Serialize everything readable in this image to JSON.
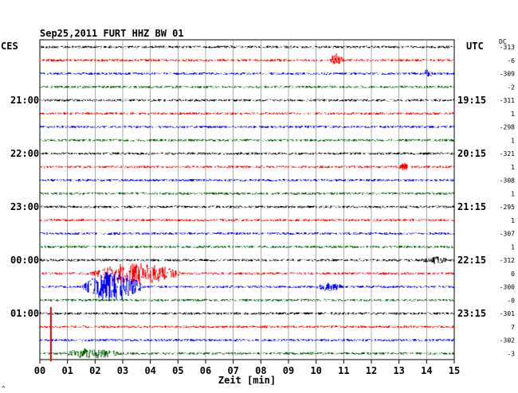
{
  "chart_data": {
    "type": "line",
    "title": "Sep25,2011   FURT HHZ BW 01",
    "left_axis_label": "CES",
    "right_axis_label": "UTC",
    "dc_label": "DC",
    "xlabel": "Zeit [min]",
    "xlim": [
      0,
      15
    ],
    "x_ticks": [
      "00",
      "01",
      "02",
      "03",
      "04",
      "05",
      "06",
      "07",
      "08",
      "09",
      "10",
      "11",
      "12",
      "13",
      "14",
      "15"
    ],
    "left_time_labels": [
      {
        "row": 4,
        "text": "21:00"
      },
      {
        "row": 8,
        "text": "22:00"
      },
      {
        "row": 12,
        "text": "23:00"
      },
      {
        "row": 16,
        "text": "00:00"
      },
      {
        "row": 20,
        "text": "01:00"
      }
    ],
    "right_time_labels": [
      {
        "row": 4,
        "text": "19:15"
      },
      {
        "row": 8,
        "text": "20:15"
      },
      {
        "row": 12,
        "text": "21:15"
      },
      {
        "row": 16,
        "text": "22:15"
      },
      {
        "row": 20,
        "text": "23:15"
      }
    ],
    "trace_colors": [
      "#000000",
      "#ff0000",
      "#0000ff",
      "#006400"
    ],
    "dc_offsets": [
      "-313",
      "-6",
      "-309",
      "-2",
      "-311",
      "1",
      "-298",
      "1",
      "-321",
      "1",
      "-308",
      "1",
      "-295",
      "1",
      "-307",
      "1",
      "-312",
      "0",
      "-300",
      "-0",
      "-301",
      "7",
      "-302",
      "-3"
    ],
    "events": [
      {
        "row": 1,
        "start_min": 10.5,
        "end_min": 11.0,
        "amp": 1.8
      },
      {
        "row": 2,
        "start_min": 13.9,
        "end_min": 14.2,
        "amp": 1.4
      },
      {
        "row": 9,
        "start_min": 13.0,
        "end_min": 13.4,
        "amp": 0.9
      },
      {
        "row": 17,
        "start_min": 1.8,
        "end_min": 5.2,
        "amp": 3.0
      },
      {
        "row": 18,
        "start_min": 1.5,
        "end_min": 3.8,
        "amp": 4.5
      },
      {
        "row": 18,
        "start_min": 10.0,
        "end_min": 11.0,
        "amp": 1.0
      },
      {
        "row": 23,
        "start_min": 0.8,
        "end_min": 3.0,
        "amp": 1.3
      },
      {
        "row": 16,
        "start_min": 13.8,
        "end_min": 14.8,
        "amp": 0.8
      }
    ],
    "spikes": [
      {
        "row": 20,
        "at_min": 0.4,
        "length_rows": 3.6
      }
    ],
    "grid": true
  },
  "footer_mark": "^"
}
